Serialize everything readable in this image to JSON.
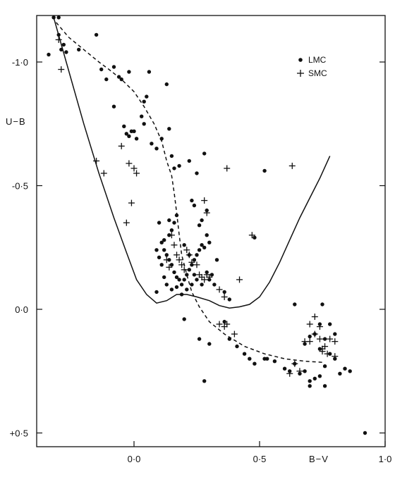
{
  "chart_data": {
    "type": "scatter",
    "title": "",
    "xlabel": "B−V",
    "ylabel": "U−B",
    "xlim": [
      -0.36,
      1.0
    ],
    "ylim": [
      0.5,
      -1.18
    ],
    "y_inverted": true,
    "grid": false,
    "legend_position": "top-right",
    "x_ticks": [
      {
        "value": 0.0,
        "label": "0·0"
      },
      {
        "value": 0.5,
        "label": "0·5"
      },
      {
        "value": 1.0,
        "label": "1·0"
      }
    ],
    "y_ticks": [
      {
        "value": -1.0,
        "label": "-1·0"
      },
      {
        "value": -0.5,
        "label": "-0·5"
      },
      {
        "value": 0.0,
        "label": "0·0"
      },
      {
        "value": 0.5,
        "label": "+0·5"
      }
    ],
    "series": [
      {
        "name": "LMC",
        "marker": "dot",
        "points": [
          [
            -0.32,
            -1.18
          ],
          [
            -0.3,
            -1.18
          ],
          [
            -0.34,
            -1.03
          ],
          [
            -0.3,
            -1.11
          ],
          [
            -0.28,
            -1.07
          ],
          [
            -0.29,
            -1.05
          ],
          [
            -0.27,
            -1.04
          ],
          [
            -0.22,
            -1.05
          ],
          [
            -0.15,
            -1.11
          ],
          [
            -0.13,
            -0.97
          ],
          [
            -0.11,
            -0.93
          ],
          [
            -0.08,
            -0.98
          ],
          [
            -0.06,
            -0.94
          ],
          [
            -0.05,
            -0.93
          ],
          [
            -0.02,
            -0.96
          ],
          [
            0.06,
            -0.96
          ],
          [
            -0.08,
            -0.82
          ],
          [
            -0.04,
            -0.74
          ],
          [
            -0.03,
            -0.71
          ],
          [
            -0.02,
            -0.7
          ],
          [
            -0.01,
            -0.72
          ],
          [
            0.0,
            -0.72
          ],
          [
            0.03,
            -0.78
          ],
          [
            0.04,
            -0.75
          ],
          [
            0.04,
            -0.84
          ],
          [
            0.05,
            -0.86
          ],
          [
            0.13,
            -0.91
          ],
          [
            0.01,
            -0.69
          ],
          [
            0.07,
            -0.67
          ],
          [
            0.09,
            -0.65
          ],
          [
            0.11,
            -0.69
          ],
          [
            0.14,
            -0.73
          ],
          [
            0.15,
            -0.62
          ],
          [
            0.16,
            -0.57
          ],
          [
            0.18,
            -0.58
          ],
          [
            0.22,
            -0.6
          ],
          [
            0.25,
            -0.55
          ],
          [
            0.28,
            -0.63
          ],
          [
            0.52,
            -0.56
          ],
          [
            0.1,
            -0.35
          ],
          [
            0.12,
            -0.28
          ],
          [
            0.14,
            -0.3
          ],
          [
            0.15,
            -0.32
          ],
          [
            0.16,
            -0.35
          ],
          [
            0.17,
            -0.38
          ],
          [
            0.11,
            -0.27
          ],
          [
            0.12,
            -0.24
          ],
          [
            0.13,
            -0.22
          ],
          [
            0.14,
            -0.2
          ],
          [
            0.15,
            -0.18
          ],
          [
            0.16,
            -0.15
          ],
          [
            0.17,
            -0.13
          ],
          [
            0.18,
            -0.12
          ],
          [
            0.19,
            -0.1
          ],
          [
            0.2,
            -0.12
          ],
          [
            0.21,
            -0.14
          ],
          [
            0.22,
            -0.16
          ],
          [
            0.23,
            -0.18
          ],
          [
            0.24,
            -0.2
          ],
          [
            0.25,
            -0.22
          ],
          [
            0.26,
            -0.24
          ],
          [
            0.27,
            -0.26
          ],
          [
            0.28,
            -0.25
          ],
          [
            0.29,
            -0.3
          ],
          [
            0.3,
            -0.27
          ],
          [
            0.29,
            -0.15
          ],
          [
            0.3,
            -0.12
          ],
          [
            0.31,
            -0.14
          ],
          [
            0.32,
            -0.1
          ],
          [
            0.26,
            -0.34
          ],
          [
            0.27,
            -0.36
          ],
          [
            0.29,
            -0.4
          ],
          [
            0.23,
            -0.44
          ],
          [
            0.24,
            -0.42
          ],
          [
            0.09,
            -0.24
          ],
          [
            0.1,
            -0.21
          ],
          [
            0.11,
            -0.18
          ],
          [
            0.12,
            -0.13
          ],
          [
            0.13,
            -0.1
          ],
          [
            0.15,
            -0.08
          ],
          [
            0.17,
            -0.09
          ],
          [
            0.19,
            -0.06
          ],
          [
            0.21,
            -0.08
          ],
          [
            0.23,
            -0.1
          ],
          [
            0.14,
            -0.36
          ],
          [
            0.2,
            -0.26
          ],
          [
            0.22,
            -0.22
          ],
          [
            0.24,
            -0.14
          ],
          [
            0.25,
            -0.12
          ],
          [
            0.27,
            -0.1
          ],
          [
            0.09,
            -0.07
          ],
          [
            0.36,
            -0.07
          ],
          [
            0.38,
            -0.04
          ],
          [
            0.33,
            -0.2
          ],
          [
            0.48,
            -0.29
          ],
          [
            0.2,
            0.04
          ],
          [
            0.26,
            0.12
          ],
          [
            0.3,
            0.14
          ],
          [
            0.28,
            0.29
          ],
          [
            0.36,
            0.05
          ],
          [
            0.38,
            0.12
          ],
          [
            0.41,
            0.15
          ],
          [
            0.44,
            0.18
          ],
          [
            0.46,
            0.2
          ],
          [
            0.48,
            0.22
          ],
          [
            0.52,
            0.2
          ],
          [
            0.53,
            0.2
          ],
          [
            0.56,
            0.21
          ],
          [
            0.6,
            0.24
          ],
          [
            0.62,
            0.25
          ],
          [
            0.64,
            0.22
          ],
          [
            0.66,
            0.26
          ],
          [
            0.68,
            0.25
          ],
          [
            0.7,
            0.29
          ],
          [
            0.7,
            0.31
          ],
          [
            0.72,
            0.28
          ],
          [
            0.74,
            0.27
          ],
          [
            0.76,
            0.23
          ],
          [
            0.76,
            0.31
          ],
          [
            0.78,
            0.18
          ],
          [
            0.8,
            0.2
          ],
          [
            0.82,
            0.26
          ],
          [
            0.84,
            0.24
          ],
          [
            0.86,
            0.25
          ],
          [
            0.75,
            -0.02
          ],
          [
            0.74,
            0.06
          ],
          [
            0.72,
            0.1
          ],
          [
            0.7,
            0.11
          ],
          [
            0.64,
            -0.02
          ],
          [
            0.68,
            0.14
          ],
          [
            0.8,
            0.1
          ],
          [
            0.78,
            0.06
          ],
          [
            0.74,
            0.16
          ],
          [
            0.76,
            0.12
          ],
          [
            0.92,
            0.5
          ]
        ]
      },
      {
        "name": "SMC",
        "marker": "plus",
        "points": [
          [
            -0.3,
            -1.09
          ],
          [
            -0.29,
            -0.97
          ],
          [
            -0.15,
            -0.6
          ],
          [
            -0.12,
            -0.55
          ],
          [
            -0.05,
            -0.66
          ],
          [
            -0.02,
            -0.59
          ],
          [
            0.0,
            -0.57
          ],
          [
            -0.01,
            -0.43
          ],
          [
            -0.03,
            -0.35
          ],
          [
            0.01,
            -0.55
          ],
          [
            0.63,
            -0.58
          ],
          [
            0.37,
            -0.57
          ],
          [
            0.47,
            -0.3
          ],
          [
            0.28,
            -0.44
          ],
          [
            0.29,
            -0.39
          ],
          [
            0.15,
            -0.3
          ],
          [
            0.16,
            -0.26
          ],
          [
            0.17,
            -0.22
          ],
          [
            0.18,
            -0.2
          ],
          [
            0.19,
            -0.18
          ],
          [
            0.2,
            -0.16
          ],
          [
            0.21,
            -0.24
          ],
          [
            0.22,
            -0.22
          ],
          [
            0.23,
            -0.19
          ],
          [
            0.14,
            -0.17
          ],
          [
            0.13,
            -0.2
          ],
          [
            0.25,
            -0.18
          ],
          [
            0.26,
            -0.14
          ],
          [
            0.27,
            -0.13
          ],
          [
            0.28,
            -0.12
          ],
          [
            0.29,
            -0.14
          ],
          [
            0.3,
            -0.13
          ],
          [
            0.34,
            -0.08
          ],
          [
            0.36,
            -0.05
          ],
          [
            0.42,
            -0.12
          ],
          [
            0.34,
            0.06
          ],
          [
            0.36,
            0.07
          ],
          [
            0.37,
            0.06
          ],
          [
            0.4,
            0.1
          ],
          [
            0.62,
            0.26
          ],
          [
            0.64,
            0.22
          ],
          [
            0.66,
            0.25
          ],
          [
            0.68,
            0.13
          ],
          [
            0.7,
            0.13
          ],
          [
            0.72,
            0.1
          ],
          [
            0.74,
            0.12
          ],
          [
            0.75,
            0.16
          ],
          [
            0.76,
            0.15
          ],
          [
            0.78,
            0.12
          ],
          [
            0.8,
            0.13
          ],
          [
            0.74,
            0.07
          ],
          [
            0.7,
            0.06
          ],
          [
            0.72,
            0.03
          ],
          [
            0.75,
            0.17
          ],
          [
            0.77,
            0.18
          ],
          [
            0.8,
            0.19
          ]
        ]
      },
      {
        "name": "",
        "style": "solid-curve",
        "points": [
          [
            -0.32,
            -1.18
          ],
          [
            -0.27,
            -1.0
          ],
          [
            -0.2,
            -0.75
          ],
          [
            -0.14,
            -0.55
          ],
          [
            -0.08,
            -0.37
          ],
          [
            -0.03,
            -0.23
          ],
          [
            0.01,
            -0.12
          ],
          [
            0.05,
            -0.06
          ],
          [
            0.09,
            -0.025
          ],
          [
            0.13,
            -0.035
          ],
          [
            0.17,
            -0.06
          ],
          [
            0.21,
            -0.06
          ],
          [
            0.25,
            -0.05
          ],
          [
            0.3,
            -0.035
          ],
          [
            0.34,
            -0.015
          ],
          [
            0.38,
            -0.005
          ],
          [
            0.42,
            -0.01
          ],
          [
            0.46,
            -0.02
          ],
          [
            0.5,
            -0.05
          ],
          [
            0.54,
            -0.11
          ],
          [
            0.58,
            -0.19
          ],
          [
            0.62,
            -0.28
          ],
          [
            0.66,
            -0.37
          ],
          [
            0.7,
            -0.45
          ],
          [
            0.74,
            -0.53
          ],
          [
            0.78,
            -0.62
          ]
        ]
      },
      {
        "name": "",
        "style": "dashed-curve",
        "points": [
          [
            -0.31,
            -1.16
          ],
          [
            -0.26,
            -1.1
          ],
          [
            -0.2,
            -1.05
          ],
          [
            -0.14,
            -1.0
          ],
          [
            -0.1,
            -0.97
          ],
          [
            -0.05,
            -0.93
          ],
          [
            0.0,
            -0.88
          ],
          [
            0.04,
            -0.82
          ],
          [
            0.08,
            -0.75
          ],
          [
            0.11,
            -0.68
          ],
          [
            0.13,
            -0.6
          ],
          [
            0.15,
            -0.54
          ],
          [
            0.16,
            -0.47
          ],
          [
            0.17,
            -0.39
          ],
          [
            0.18,
            -0.3
          ],
          [
            0.19,
            -0.22
          ],
          [
            0.21,
            -0.14
          ],
          [
            0.23,
            -0.07
          ],
          [
            0.26,
            -0.01
          ],
          [
            0.3,
            0.05
          ],
          [
            0.36,
            0.1
          ],
          [
            0.44,
            0.15
          ],
          [
            0.52,
            0.18
          ],
          [
            0.6,
            0.2
          ],
          [
            0.68,
            0.21
          ],
          [
            0.76,
            0.215
          ]
        ]
      }
    ]
  }
}
